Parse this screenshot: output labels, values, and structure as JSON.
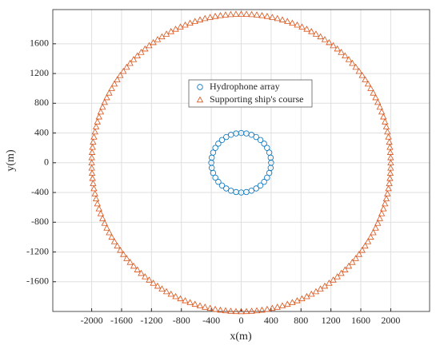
{
  "chart_data": {
    "type": "scatter",
    "x_label": "x(m)",
    "y_label": "y(m)",
    "xlim": [
      -2520,
      2520
    ],
    "ylim": [
      -2000,
      2060
    ],
    "xticks": [
      -2000,
      -1600,
      -1200,
      -800,
      -400,
      0,
      400,
      800,
      1200,
      1600,
      2000
    ],
    "yticks": [
      -1600,
      -1200,
      -800,
      -400,
      0,
      400,
      800,
      1200,
      1600
    ],
    "grid": true,
    "legend": "top",
    "series": [
      {
        "name": "Hydrophone array",
        "color": "#0072bd",
        "marker": "circle",
        "x": [
          400,
          394,
          376,
          346,
          306,
          257,
          200,
          137,
          69,
          0,
          -69,
          -137,
          -200,
          -257,
          -306,
          -346,
          -376,
          -394,
          -400,
          -394,
          -376,
          -346,
          -306,
          -257,
          -200,
          -137,
          -69,
          0,
          69,
          137,
          200,
          257,
          306,
          346,
          376,
          394
        ],
        "values": [
          0,
          69,
          137,
          200,
          257,
          306,
          346,
          376,
          394,
          400,
          394,
          376,
          346,
          306,
          257,
          200,
          137,
          69,
          0,
          -69,
          -137,
          -200,
          -257,
          -306,
          -346,
          -376,
          -394,
          -400,
          -394,
          -376,
          -346,
          -306,
          -257,
          -200,
          -137,
          -69
        ]
      },
      {
        "name": "Supporting ship's course",
        "color": "#d95319",
        "marker": "triangle",
        "x": [
          2000,
          1999,
          1995,
          1989,
          1981,
          1970,
          1956,
          1941,
          1923,
          1902,
          1879,
          1854,
          1827,
          1798,
          1766,
          1732,
          1696,
          1658,
          1618,
          1576,
          1532,
          1486,
          1439,
          1389,
          1338,
          1286,
          1231,
          1176,
          1118,
          1060,
          1000,
          939,
          877,
          813,
          749,
          684,
          618,
          551,
          484,
          416,
          347,
          278,
          209,
          140,
          70,
          0,
          -70,
          -140,
          -209,
          -278,
          -347,
          -416,
          -484,
          -551,
          -618,
          -684,
          -749,
          -813,
          -877,
          -939,
          -1000,
          -1060,
          -1118,
          -1176,
          -1231,
          -1286,
          -1338,
          -1389,
          -1439,
          -1486,
          -1532,
          -1576,
          -1618,
          -1658,
          -1696,
          -1732,
          -1766,
          -1798,
          -1827,
          -1854,
          -1879,
          -1902,
          -1923,
          -1941,
          -1956,
          -1970,
          -1981,
          -1989,
          -1995,
          -1999,
          -2000,
          -1999,
          -1995,
          -1989,
          -1981,
          -1970,
          -1956,
          -1941,
          -1923,
          -1902,
          -1879,
          -1854,
          -1827,
          -1798,
          -1766,
          -1732,
          -1696,
          -1658,
          -1618,
          -1576,
          -1532,
          -1486,
          -1439,
          -1389,
          -1338,
          -1286,
          -1231,
          -1176,
          -1118,
          -1060,
          -1000,
          -939,
          -877,
          -813,
          -749,
          -684,
          -618,
          -551,
          -484,
          -416,
          -347,
          -278,
          -209,
          -140,
          -70,
          0,
          70,
          140,
          209,
          278,
          347,
          416,
          484,
          551,
          618,
          684,
          749,
          813,
          877,
          939,
          1000,
          1060,
          1118,
          1176,
          1231,
          1286,
          1338,
          1389,
          1439,
          1486,
          1532,
          1576,
          1618,
          1658,
          1696,
          1732,
          1766,
          1798,
          1827,
          1854,
          1879,
          1902,
          1923,
          1941,
          1956,
          1970,
          1981,
          1989,
          1995,
          1999
        ],
        "values": [
          0,
          70,
          140,
          209,
          278,
          347,
          416,
          484,
          551,
          618,
          684,
          749,
          813,
          877,
          939,
          1000,
          1060,
          1118,
          1176,
          1231,
          1286,
          1338,
          1389,
          1439,
          1486,
          1532,
          1576,
          1618,
          1658,
          1696,
          1732,
          1766,
          1798,
          1827,
          1854,
          1879,
          1902,
          1923,
          1941,
          1956,
          1970,
          1981,
          1989,
          1995,
          1999,
          2000,
          1999,
          1995,
          1989,
          1981,
          1970,
          1956,
          1941,
          1923,
          1902,
          1879,
          1854,
          1827,
          1798,
          1766,
          1732,
          1696,
          1658,
          1618,
          1576,
          1532,
          1486,
          1439,
          1389,
          1338,
          1286,
          1231,
          1176,
          1118,
          1060,
          1000,
          939,
          877,
          813,
          749,
          684,
          618,
          551,
          484,
          416,
          347,
          278,
          209,
          140,
          70,
          0,
          -70,
          -140,
          -209,
          -278,
          -347,
          -416,
          -484,
          -551,
          -618,
          -684,
          -749,
          -813,
          -877,
          -939,
          -1000,
          -1060,
          -1118,
          -1176,
          -1231,
          -1286,
          -1338,
          -1389,
          -1439,
          -1486,
          -1532,
          -1576,
          -1618,
          -1658,
          -1696,
          -1732,
          -1766,
          -1798,
          -1827,
          -1854,
          -1879,
          -1902,
          -1923,
          -1941,
          -1956,
          -1970,
          -1981,
          -1989,
          -1995,
          -1999,
          -2000,
          -1999,
          -1995,
          -1989,
          -1981,
          -1970,
          -1956,
          -1941,
          -1923,
          -1902,
          -1879,
          -1854,
          -1827,
          -1798,
          -1766,
          -1732,
          -1696,
          -1658,
          -1618,
          -1576,
          -1532,
          -1486,
          -1439,
          -1389,
          -1338,
          -1286,
          -1231,
          -1176,
          -1118,
          -1060,
          -1000,
          -939,
          -877,
          -813,
          -749,
          -684,
          -618,
          -551,
          -484,
          -416,
          -347,
          -278,
          -209,
          -140,
          -70
        ]
      }
    ]
  }
}
